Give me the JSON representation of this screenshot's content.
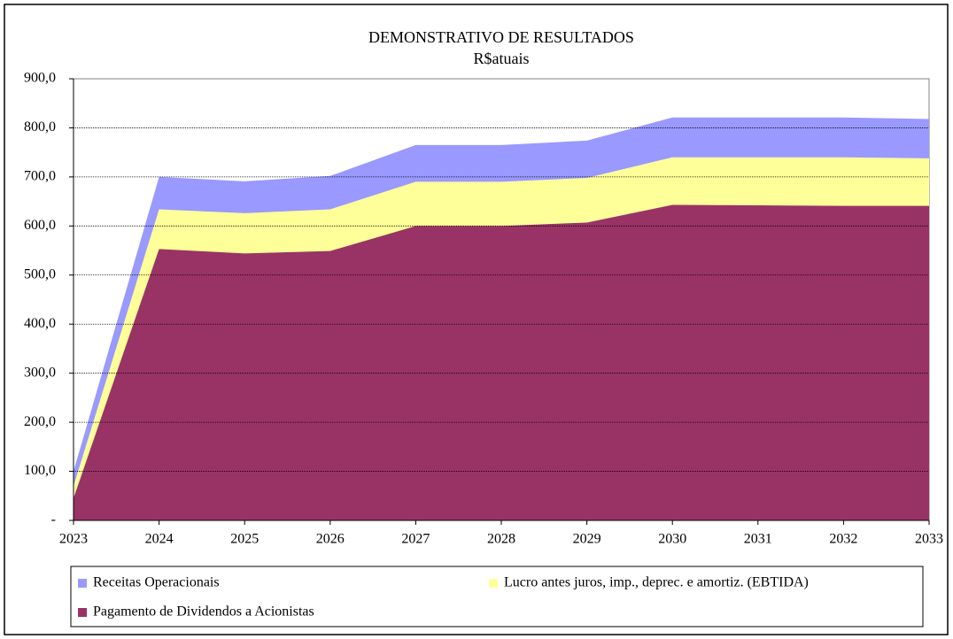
{
  "chart_data": {
    "type": "area",
    "title": "DEMONSTRATIVO DE RESULTADOS",
    "subtitle": "R$atuais",
    "categories": [
      "2023",
      "2024",
      "2025",
      "2026",
      "2027",
      "2028",
      "2029",
      "2030",
      "2031",
      "2032",
      "2033"
    ],
    "series": [
      {
        "name": "Receitas Operacionais",
        "color": "#9999ff",
        "values": [
          100,
          700,
          691,
          702,
          765,
          765,
          774,
          821,
          821,
          821,
          818
        ]
      },
      {
        "name": "Lucro antes juros, imp., deprec. e amortiz. (EBTIDA)",
        "color": "#ffff99",
        "values": [
          70,
          634,
          626,
          634,
          690,
          690,
          698,
          740,
          740,
          740,
          738
        ]
      },
      {
        "name": "Pagamento de Dividendos a Acionistas",
        "color": "#993366",
        "values": [
          45,
          553,
          544,
          549,
          600,
          600,
          607,
          643,
          642,
          641,
          641
        ]
      }
    ],
    "ylim": [
      0,
      900
    ],
    "yticks": [
      {
        "value": 0,
        "label": "-"
      },
      {
        "value": 100,
        "label": "100,0"
      },
      {
        "value": 200,
        "label": "200,0"
      },
      {
        "value": 300,
        "label": "300,0"
      },
      {
        "value": 400,
        "label": "400,0"
      },
      {
        "value": 500,
        "label": "500,0"
      },
      {
        "value": 600,
        "label": "600,0"
      },
      {
        "value": 700,
        "label": "700,0"
      },
      {
        "value": 800,
        "label": "800,0"
      },
      {
        "value": 900,
        "label": "900,0"
      }
    ],
    "grid": true
  }
}
